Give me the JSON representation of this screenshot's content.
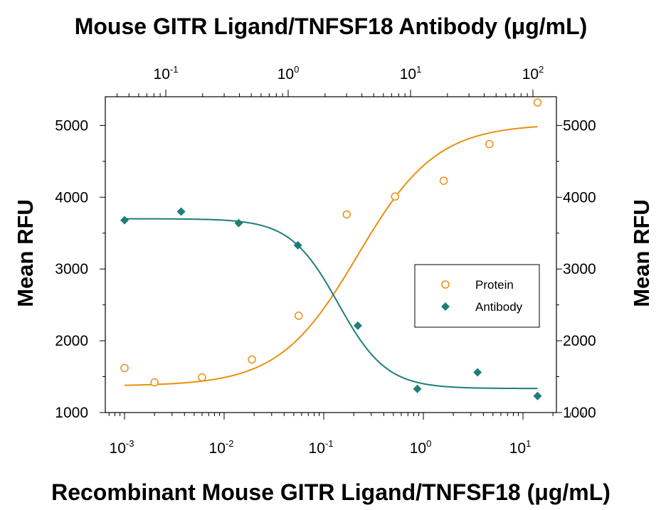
{
  "chart_data": {
    "type": "scatter",
    "title_top": "Mouse GITR Ligand/TNFSF18 Antibody (μg/mL)",
    "xlabel_bottom": "Recombinant Mouse GITR Ligand/TNFSF18 (μg/mL)",
    "ylabel_left": "Mean RFU",
    "ylabel_right": "Mean RFU",
    "x_bottom_scale": "log",
    "x_top_scale": "log",
    "x_bottom_ticks": [
      {
        "base": "10",
        "exp": "-3",
        "value": 0.001
      },
      {
        "base": "10",
        "exp": "-2",
        "value": 0.01
      },
      {
        "base": "10",
        "exp": "-1",
        "value": 0.1
      },
      {
        "base": "10",
        "exp": "0",
        "value": 1
      },
      {
        "base": "10",
        "exp": "1",
        "value": 10
      }
    ],
    "x_top_ticks": [
      {
        "base": "10",
        "exp": "-1",
        "value": 0.1
      },
      {
        "base": "10",
        "exp": "0",
        "value": 1
      },
      {
        "base": "10",
        "exp": "1",
        "value": 10
      },
      {
        "base": "10",
        "exp": "2",
        "value": 100
      }
    ],
    "ylim": [
      1000,
      5400
    ],
    "y_ticks": [
      "1000",
      "2000",
      "3000",
      "4000",
      "5000"
    ],
    "legend_position": "right",
    "series": [
      {
        "name": "Protein",
        "axis": "bottom",
        "marker": "open-circle",
        "color": "#E8900F",
        "x": [
          0.001,
          0.002,
          0.006,
          0.019,
          0.056,
          0.17,
          0.52,
          1.6,
          4.6,
          14
        ],
        "y": [
          1620,
          1420,
          1490,
          1740,
          2350,
          3760,
          4010,
          4230,
          4740,
          5320
        ],
        "fit": {
          "model": "4PL-increasing",
          "bottom": 1370,
          "top": 5020,
          "ec50": 0.22,
          "hill": 1.1
        }
      },
      {
        "name": "Antibody",
        "axis": "bottom",
        "marker": "filled-diamond",
        "color": "#1E7E7A",
        "x": [
          0.001,
          0.0037,
          0.014,
          0.055,
          0.22,
          0.87,
          3.5,
          14
        ],
        "y": [
          3680,
          3800,
          3640,
          3330,
          2210,
          1330,
          1560,
          1230
        ],
        "fit": {
          "model": "4PL-decreasing",
          "bottom": 1335,
          "top": 3700,
          "ec50": 0.14,
          "hill": 1.8
        }
      }
    ]
  }
}
